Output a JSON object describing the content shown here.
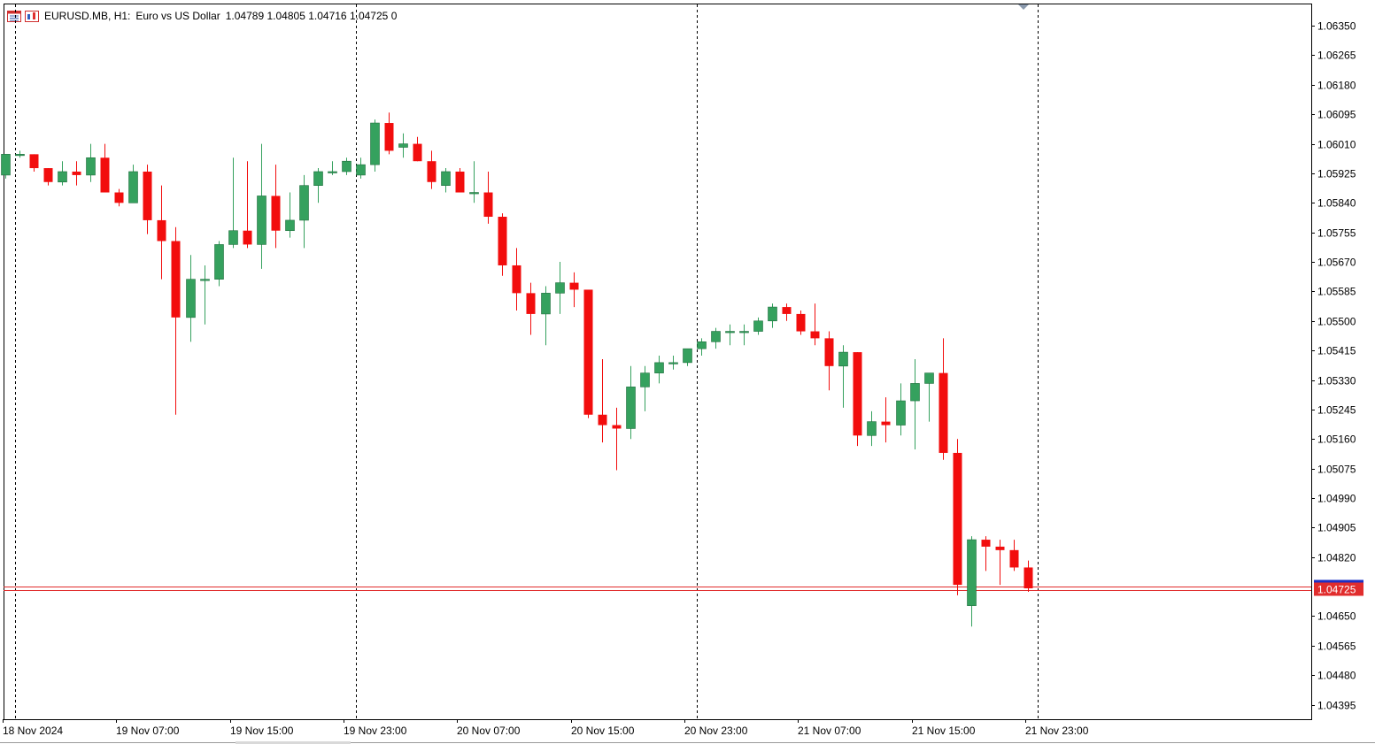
{
  "header": {
    "symbol": "EURUSD.MB",
    "timeframe": "H1:",
    "description": "Euro vs US Dollar",
    "open": "1.04789",
    "high": "1.04805",
    "low": "1.04716",
    "close": "1.04725",
    "volume": "0",
    "icons": [
      "table-icon",
      "chart-icon"
    ]
  },
  "colors": {
    "bull": "#35a15e",
    "bear": "#f20d0d",
    "bid_line": "#e12d2d",
    "ask_line": "#1d30c4",
    "grid": "#000000",
    "axis": "#000000",
    "background": "#ffffff"
  },
  "chart_data": {
    "type": "candlestick",
    "ylim": [
      1.04353,
      1.06414
    ],
    "price_ticks": [
      "1.06350",
      "1.06265",
      "1.06180",
      "1.06095",
      "1.06010",
      "1.05925",
      "1.05840",
      "1.05755",
      "1.05670",
      "1.05585",
      "1.05500",
      "1.05415",
      "1.05330",
      "1.05245",
      "1.05160",
      "1.05075",
      "1.04990",
      "1.04905",
      "1.04820",
      "1.04650",
      "1.04565",
      "1.04480",
      "1.04395"
    ],
    "current_price": "1.04725",
    "time_labels": [
      {
        "label": "18 Nov 2024",
        "bar": 0
      },
      {
        "label": "19 Nov 07:00",
        "bar": 8
      },
      {
        "label": "19 Nov 15:00",
        "bar": 16
      },
      {
        "label": "19 Nov 23:00",
        "bar": 24
      },
      {
        "label": "20 Nov 07:00",
        "bar": 32
      },
      {
        "label": "20 Nov 15:00",
        "bar": 40
      },
      {
        "label": "20 Nov 23:00",
        "bar": 48
      },
      {
        "label": "21 Nov 07:00",
        "bar": 56
      },
      {
        "label": "21 Nov 15:00",
        "bar": 64
      },
      {
        "label": "21 Nov 23:00",
        "bar": 72
      }
    ],
    "day_separators_bar": [
      0.7,
      24.7,
      48.7,
      72.7
    ],
    "candles": [
      [
        1.0592,
        1.0598,
        1.0591,
        1.0598
      ],
      [
        1.0598,
        1.0599,
        1.0597,
        1.0598
      ],
      [
        1.0598,
        1.0598,
        1.0593,
        1.0594
      ],
      [
        1.0594,
        1.0594,
        1.0589,
        1.059
      ],
      [
        1.059,
        1.0596,
        1.0589,
        1.0593
      ],
      [
        1.0593,
        1.0596,
        1.0589,
        1.0592
      ],
      [
        1.0592,
        1.0601,
        1.059,
        1.0597
      ],
      [
        1.0597,
        1.0601,
        1.0587,
        1.0587
      ],
      [
        1.0587,
        1.0588,
        1.0583,
        1.0584
      ],
      [
        1.0584,
        1.0595,
        1.0584,
        1.0593
      ],
      [
        1.0593,
        1.0595,
        1.0575,
        1.0579
      ],
      [
        1.0579,
        1.0589,
        1.0562,
        1.0573
      ],
      [
        1.0573,
        1.0577,
        1.0523,
        1.0551
      ],
      [
        1.0551,
        1.0569,
        1.0544,
        1.0562
      ],
      [
        1.0562,
        1.0566,
        1.0549,
        1.0562
      ],
      [
        1.0562,
        1.0573,
        1.056,
        1.0572
      ],
      [
        1.0572,
        1.0597,
        1.0571,
        1.0576
      ],
      [
        1.0576,
        1.0596,
        1.0571,
        1.0572
      ],
      [
        1.0572,
        1.0601,
        1.0565,
        1.0586
      ],
      [
        1.0586,
        1.0595,
        1.0571,
        1.0576
      ],
      [
        1.0576,
        1.0587,
        1.0574,
        1.0579
      ],
      [
        1.0579,
        1.0592,
        1.0571,
        1.0589
      ],
      [
        1.0589,
        1.0594,
        1.0584,
        1.0593
      ],
      [
        1.0593,
        1.0596,
        1.0592,
        1.0593
      ],
      [
        1.0593,
        1.0597,
        1.0592,
        1.0596
      ],
      [
        1.0592,
        1.0597,
        1.0591,
        1.0595
      ],
      [
        1.0595,
        1.0608,
        1.0593,
        1.0607
      ],
      [
        1.0607,
        1.061,
        1.0598,
        1.0599
      ],
      [
        1.06,
        1.0604,
        1.0597,
        1.0601
      ],
      [
        1.0601,
        1.0603,
        1.0596,
        1.0596
      ],
      [
        1.0596,
        1.0599,
        1.0588,
        1.059
      ],
      [
        1.0589,
        1.0594,
        1.0587,
        1.0593
      ],
      [
        1.0593,
        1.0594,
        1.0587,
        1.0587
      ],
      [
        1.0587,
        1.0596,
        1.0584,
        1.0587
      ],
      [
        1.0587,
        1.0593,
        1.0578,
        1.058
      ],
      [
        1.058,
        1.0581,
        1.0563,
        1.0566
      ],
      [
        1.0566,
        1.0571,
        1.0553,
        1.0558
      ],
      [
        1.0558,
        1.0561,
        1.0546,
        1.0552
      ],
      [
        1.0552,
        1.056,
        1.0543,
        1.0558
      ],
      [
        1.0558,
        1.0567,
        1.0552,
        1.0561
      ],
      [
        1.0561,
        1.0564,
        1.0554,
        1.0559
      ],
      [
        1.0559,
        1.0559,
        1.0522,
        1.0523
      ],
      [
        1.0523,
        1.0539,
        1.0515,
        1.052
      ],
      [
        1.052,
        1.0525,
        1.0507,
        1.0519
      ],
      [
        1.0519,
        1.0537,
        1.0516,
        1.0531
      ],
      [
        1.0531,
        1.0537,
        1.0524,
        1.0535
      ],
      [
        1.0535,
        1.054,
        1.0532,
        1.0538
      ],
      [
        1.0538,
        1.054,
        1.0536,
        1.0538
      ],
      [
        1.0538,
        1.0542,
        1.0537,
        1.0542
      ],
      [
        1.0542,
        1.0545,
        1.054,
        1.0544
      ],
      [
        1.0544,
        1.0548,
        1.0542,
        1.0547
      ],
      [
        1.0547,
        1.0549,
        1.0543,
        1.0547
      ],
      [
        1.0547,
        1.0549,
        1.0543,
        1.0547
      ],
      [
        1.0547,
        1.0551,
        1.0546,
        1.055
      ],
      [
        1.055,
        1.0555,
        1.0548,
        1.0554
      ],
      [
        1.0554,
        1.0555,
        1.055,
        1.0552
      ],
      [
        1.0552,
        1.0553,
        1.0546,
        1.0547
      ],
      [
        1.0547,
        1.0555,
        1.0543,
        1.0545
      ],
      [
        1.0545,
        1.0547,
        1.053,
        1.0537
      ],
      [
        1.0537,
        1.0543,
        1.0525,
        1.0541
      ],
      [
        1.0541,
        1.0541,
        1.0514,
        1.0517
      ],
      [
        1.0517,
        1.0524,
        1.0514,
        1.0521
      ],
      [
        1.0521,
        1.0528,
        1.0515,
        1.052
      ],
      [
        1.052,
        1.0532,
        1.0517,
        1.0527
      ],
      [
        1.0527,
        1.0539,
        1.0513,
        1.0532
      ],
      [
        1.0532,
        1.0535,
        1.0521,
        1.0535
      ],
      [
        1.0535,
        1.0545,
        1.051,
        1.0512
      ],
      [
        1.0512,
        1.0516,
        1.0471,
        1.0474
      ],
      [
        1.0468,
        1.0488,
        1.0462,
        1.0487
      ],
      [
        1.0487,
        1.0488,
        1.0478,
        1.0485
      ],
      [
        1.0485,
        1.0487,
        1.0474,
        1.0484
      ],
      [
        1.0484,
        1.0487,
        1.0478,
        1.0479
      ],
      [
        1.0479,
        1.0481,
        1.0472,
        1.0473
      ]
    ]
  }
}
